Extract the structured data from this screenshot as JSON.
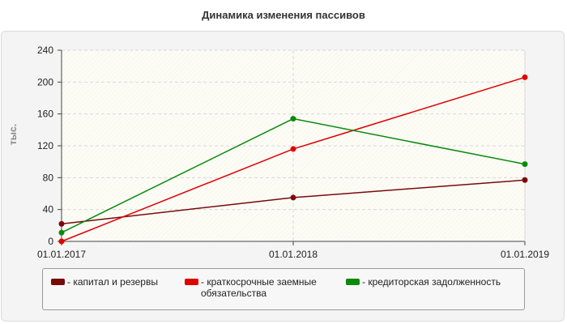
{
  "chart_data": {
    "type": "line",
    "title": "Динамика изменения пассивов",
    "ylabel": "тыс.",
    "xlabel": "",
    "x": [
      "01.01.2017",
      "01.01.2018",
      "01.01.2019"
    ],
    "ylim": [
      0,
      240
    ],
    "yticks": [
      "0",
      "40",
      "80",
      "120",
      "160",
      "200",
      "240"
    ],
    "grid": true,
    "legend_position": "bottom",
    "series": [
      {
        "name": "капитал и резервы",
        "color": "#7a0a0a",
        "values": [
          22,
          55,
          77
        ]
      },
      {
        "name": "краткосрочные заемные обязательства",
        "color": "#e00000",
        "values": [
          0,
          116,
          206
        ]
      },
      {
        "name": "кредиторская задолженность",
        "color": "#0a8a0a",
        "values": [
          11,
          154,
          97
        ]
      }
    ]
  },
  "legend": {
    "items": [
      {
        "label_prefix": "- ",
        "label": "капитал и резервы",
        "color": "#7a0a0a"
      },
      {
        "label_prefix": "- ",
        "label_line1": "краткосрочные заемные",
        "label_line2": "обязательства",
        "color": "#e00000"
      },
      {
        "label_prefix": "- ",
        "label": "кредиторская задолженность",
        "color": "#0a8a0a"
      }
    ]
  }
}
